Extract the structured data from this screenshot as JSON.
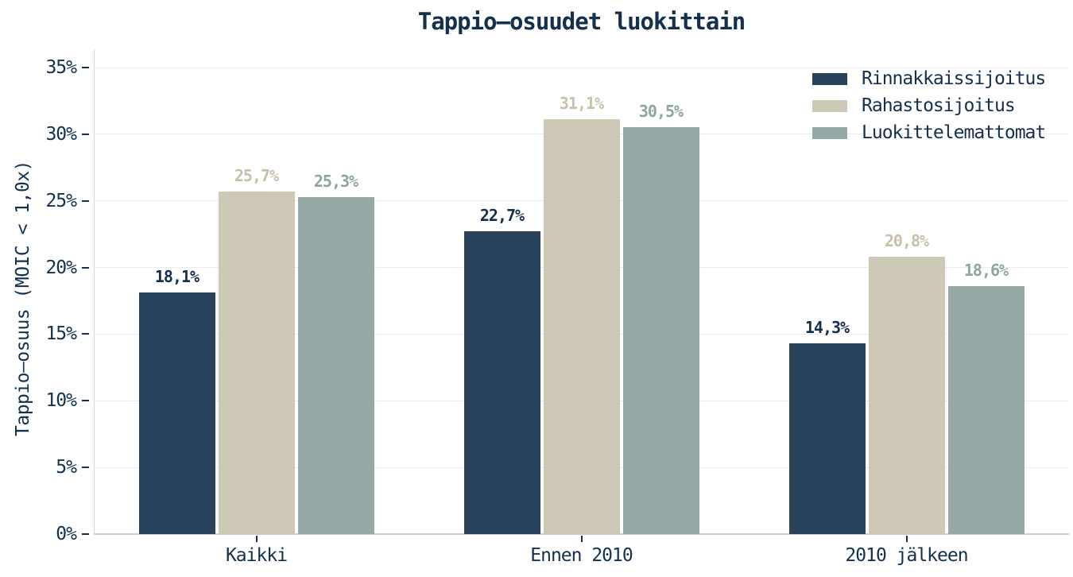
{
  "colors": {
    "text_navy": "#14304d",
    "background": "#ffffff",
    "gridline": "#ececec",
    "axis_line": "#d4d4d4"
  },
  "chart_data": {
    "type": "bar",
    "title": "Tappio–osuudet luokittain",
    "xlabel": "",
    "ylabel": "Tappio–osuus (MOIC < 1,0x)",
    "categories": [
      "Kaikki",
      "Ennen 2010",
      "2010 jälkeen"
    ],
    "series": [
      {
        "name": "Rinnakkaissijoitus",
        "color": "#27425a",
        "label_color": "#14304d",
        "values": [
          18.1,
          22.7,
          14.3
        ],
        "value_labels": [
          "18,1%",
          "22,7%",
          "14,3%"
        ]
      },
      {
        "name": "Rahastosijoitus",
        "color": "#cec8b6",
        "label_color": "#c8c0ab",
        "values": [
          25.7,
          31.1,
          20.8
        ],
        "value_labels": [
          "25,7%",
          "31,1%",
          "20,8%"
        ]
      },
      {
        "name": "Luokittelemattomat",
        "color": "#95a9a7",
        "label_color": "#8fa5a2",
        "values": [
          25.3,
          30.5,
          18.6
        ],
        "value_labels": [
          "25,3%",
          "30,5%",
          "18,6%"
        ]
      }
    ],
    "y_ticks": [
      {
        "value": 0,
        "label": "0%"
      },
      {
        "value": 5,
        "label": "5%"
      },
      {
        "value": 10,
        "label": "10%"
      },
      {
        "value": 15,
        "label": "15%"
      },
      {
        "value": 20,
        "label": "20%"
      },
      {
        "value": 25,
        "label": "25%"
      },
      {
        "value": 30,
        "label": "30%"
      },
      {
        "value": 35,
        "label": "35%"
      }
    ],
    "ylim": [
      0,
      35
    ],
    "grid": "horizontal",
    "legend_position": "top-right"
  }
}
